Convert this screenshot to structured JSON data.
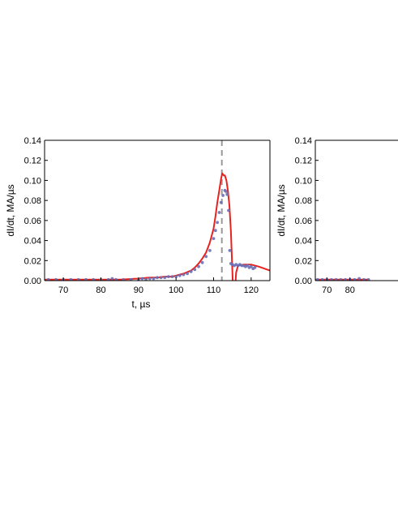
{
  "chart_data": [
    {
      "type": "line",
      "xlabel": "t, µs",
      "ylabel": "dI/dt, MA/µs",
      "xlim": [
        65,
        125
      ],
      "ylim": [
        0,
        0.14
      ],
      "xticks": [
        70,
        80,
        90,
        100,
        110,
        120
      ],
      "yticks": [
        "0.00",
        "0.02",
        "0.04",
        "0.06",
        "0.08",
        "0.10",
        "0.12",
        "0.14"
      ],
      "grid": false,
      "vline": {
        "x": 112.2,
        "style": "dashed",
        "color": "#999999"
      },
      "series": [
        {
          "kind": "line",
          "color": "#e8231f",
          "x": [
            65,
            80,
            85,
            90,
            93,
            95,
            97,
            99,
            100,
            102,
            104,
            105,
            106,
            107,
            108,
            109,
            110,
            110.5,
            111,
            111.5,
            112,
            112.3,
            112.7,
            113,
            113.4,
            113.8,
            114.2,
            114.6,
            114.9,
            115.1,
            115.4,
            115.7,
            116,
            116.5,
            118,
            120,
            122,
            125
          ],
          "y": [
            0.001,
            0.001,
            0.001,
            0.002,
            0.003,
            0.003,
            0.004,
            0.004,
            0.005,
            0.007,
            0.01,
            0.013,
            0.017,
            0.022,
            0.028,
            0.038,
            0.052,
            0.064,
            0.078,
            0.09,
            0.102,
            0.107,
            0.105,
            0.105,
            0.1,
            0.09,
            0.075,
            0.05,
            0.02,
            0.0,
            -0.02,
            -0.01,
            0.008,
            0.015,
            0.016,
            0.016,
            0.014,
            0.01
          ]
        },
        {
          "kind": "scatter",
          "color": "#6a6fb5",
          "x": [
            66,
            68,
            70,
            72,
            74,
            76,
            78,
            80,
            82,
            83,
            84,
            86,
            88,
            90,
            91,
            92,
            93,
            94,
            95,
            96,
            97,
            98,
            99,
            100,
            101,
            102,
            103,
            104,
            105,
            106,
            107,
            108,
            109,
            110,
            110.5,
            111,
            111.5,
            112,
            112.5,
            113,
            113.3,
            113.6,
            114,
            114.3,
            114.6,
            115,
            115.5,
            116,
            116.5,
            117,
            117.5,
            118,
            118.5,
            119,
            119.5,
            120,
            120.5,
            121
          ],
          "y": [
            0.001,
            0.001,
            0.001,
            0.001,
            0.001,
            0.001,
            0.001,
            0.001,
            0.001,
            0.002,
            0.001,
            0.001,
            0.001,
            0.001,
            0.002,
            0.001,
            0.002,
            0.002,
            0.003,
            0.003,
            0.003,
            0.004,
            0.004,
            0.004,
            0.005,
            0.006,
            0.007,
            0.009,
            0.011,
            0.014,
            0.018,
            0.024,
            0.03,
            0.042,
            0.05,
            0.058,
            0.068,
            0.078,
            0.085,
            0.09,
            0.089,
            0.086,
            0.07,
            0.03,
            0.017,
            0.016,
            0.015,
            0.016,
            0.015,
            0.016,
            0.015,
            0.015,
            0.014,
            0.015,
            0.013,
            0.014,
            0.012,
            0.013
          ]
        }
      ]
    },
    {
      "type": "line",
      "xlabel": "",
      "ylabel": "dI/dt, MA/µs",
      "xlim": [
        65,
        125
      ],
      "ylim": [
        0,
        0.14
      ],
      "xticks": [
        70,
        80
      ],
      "yticks": [
        "0.00",
        "0.02",
        "0.04",
        "0.06",
        "0.08",
        "0.10",
        "0.12",
        "0.14"
      ],
      "grid": false,
      "series": [
        {
          "kind": "line",
          "color": "#e8231f",
          "x": [
            65,
            80,
            88
          ],
          "y": [
            0.001,
            0.001,
            0.001
          ]
        },
        {
          "kind": "scatter",
          "color": "#6a6fb5",
          "x": [
            66,
            68,
            70,
            72,
            74,
            76,
            78,
            80,
            82,
            84,
            86,
            88
          ],
          "y": [
            0.001,
            0.001,
            0.001,
            0.001,
            0.001,
            0.001,
            0.001,
            0.001,
            0.001,
            0.002,
            0.001,
            0.001
          ]
        }
      ]
    }
  ]
}
